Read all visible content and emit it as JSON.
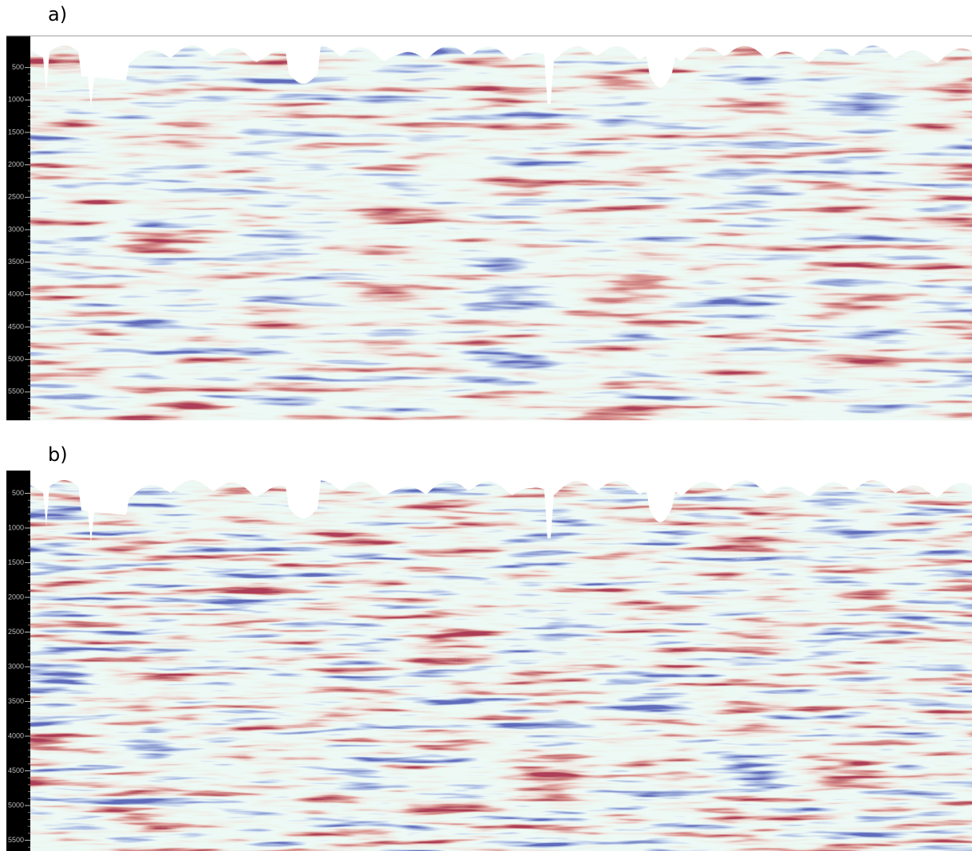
{
  "panels": [
    {
      "label": "a)",
      "ylim": [
        0,
        6000
      ],
      "yticks": [
        500,
        1000,
        1500,
        2000,
        2500,
        3000,
        3500,
        4000,
        4500,
        5000,
        5500
      ]
    },
    {
      "label": "b)",
      "ylim": [
        0,
        6000
      ],
      "yticks": [
        500,
        1000,
        1500,
        2000,
        2500,
        3000,
        3500,
        4000,
        4500,
        5000,
        5500
      ]
    }
  ]
}
